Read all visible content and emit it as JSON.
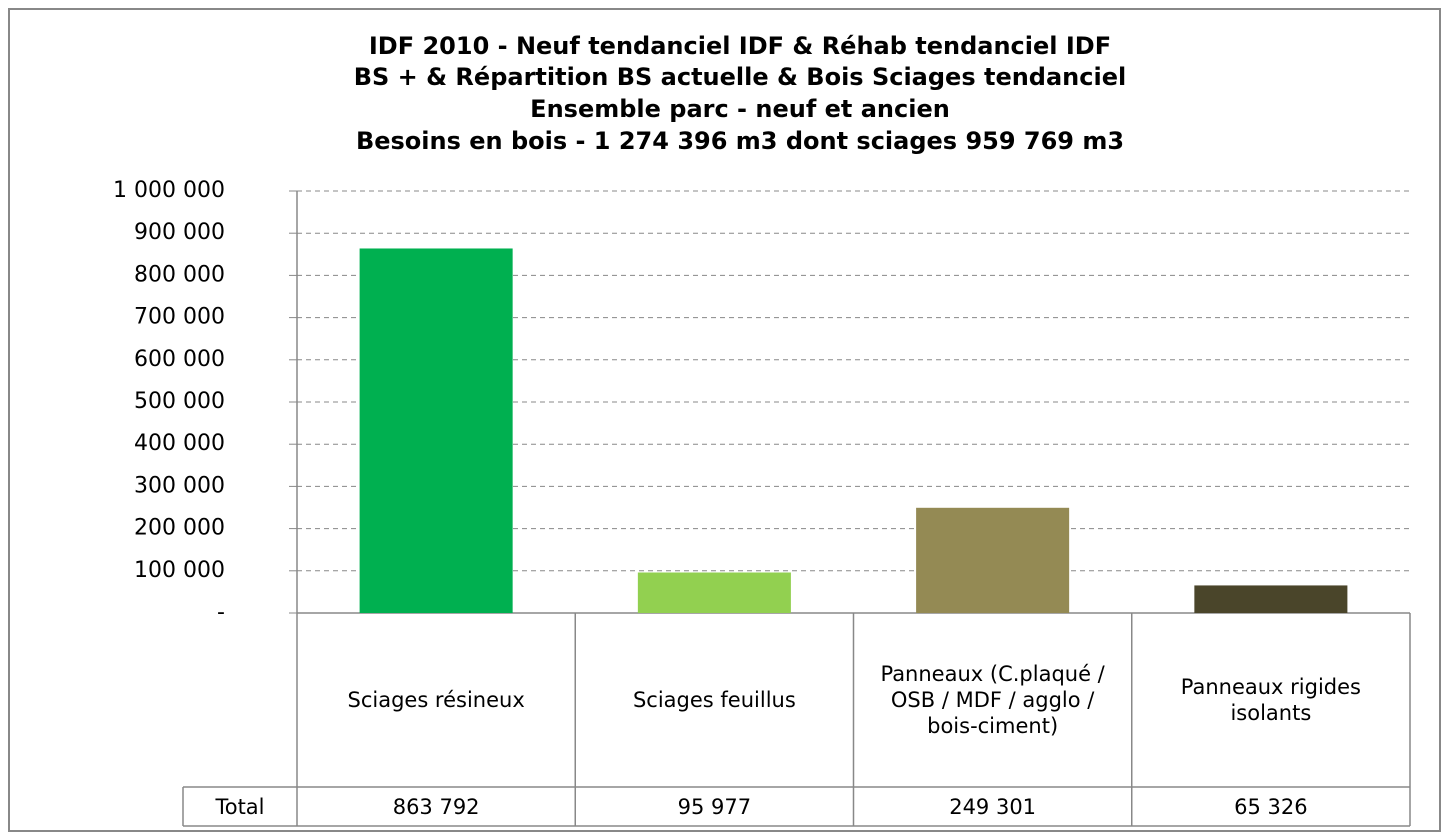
{
  "chart_data": {
    "type": "bar",
    "title": [
      "IDF 2010 - Neuf tendanciel IDF & Réhab tendanciel IDF",
      "BS + & Répartition BS actuelle & Bois Sciages tendanciel",
      "Ensemble parc - neuf et ancien",
      "Besoins en bois - 1 274 396 m3 dont sciages 959 769 m3"
    ],
    "categories": [
      "Sciages résineux",
      "Sciages feuillus",
      "Panneaux (C.plaqué / OSB / MDF / agglo / bois-ciment)",
      "Panneaux rigides isolants"
    ],
    "values": [
      863792,
      95977,
      249301,
      65326
    ],
    "value_labels": [
      "863 792",
      "95 977",
      "249 301",
      "65 326"
    ],
    "table_row_label": "Total",
    "colors": [
      "#00b050",
      "#92d050",
      "#948a54",
      "#4a452a"
    ],
    "ylim": [
      0,
      1000000
    ],
    "yticks": [
      {
        "value": 0,
        "label": "-"
      },
      {
        "value": 100000,
        "label": "100 000"
      },
      {
        "value": 200000,
        "label": "200 000"
      },
      {
        "value": 300000,
        "label": "300 000"
      },
      {
        "value": 400000,
        "label": "400 000"
      },
      {
        "value": 500000,
        "label": "500 000"
      },
      {
        "value": 600000,
        "label": "600 000"
      },
      {
        "value": 700000,
        "label": "700 000"
      },
      {
        "value": 800000,
        "label": "800 000"
      },
      {
        "value": 900000,
        "label": "900 000"
      },
      {
        "value": 1000000,
        "label": "1 000 000"
      }
    ],
    "grid": true
  }
}
